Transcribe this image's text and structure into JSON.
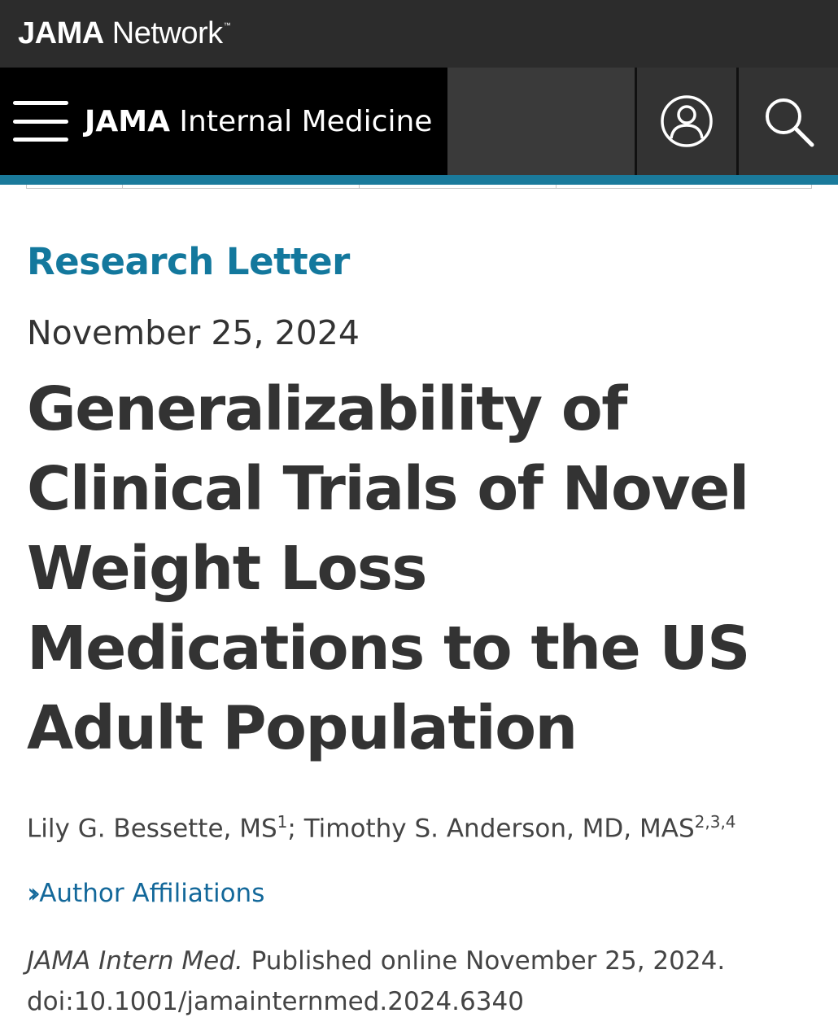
{
  "network": {
    "brand_bold": "JAMA",
    "brand_light": " Network",
    "trademark": "™"
  },
  "nav": {
    "journal_bold": "JAMA",
    "journal_light": " Internal Medicine",
    "menu_icon": "hamburger-icon",
    "account_icon": "user-icon",
    "search_icon": "search-icon"
  },
  "article": {
    "type": "Research Letter",
    "date": "November 25, 2024",
    "title": "Generalizability of Clinical Trials of Novel Weight Loss Medications to the US Adult Population",
    "author1": "Lily G. Bessette, MS",
    "author1_sup": "1",
    "separator": "; ",
    "author2": "Timothy S. Anderson, MD, MAS",
    "author2_sup": "2,3,4",
    "affiliations_label": "Author Affiliations",
    "citation_journal": "JAMA Intern Med.",
    "citation_published": " Published online November 25, 2024.",
    "doi": "doi:10.1001/jamainternmed.2024.6340"
  },
  "colors": {
    "accent": "#1a7a9b",
    "link": "#13789d",
    "nav_black": "#000000",
    "top_bar": "#2c2c2c"
  }
}
